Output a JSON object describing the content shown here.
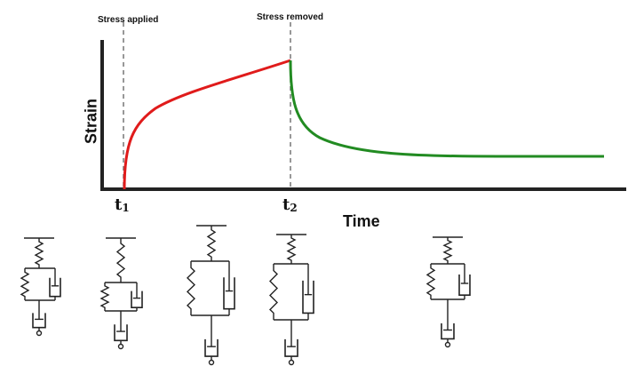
{
  "chart_data": {
    "type": "line",
    "title": "",
    "xlabel": "Time",
    "ylabel": "Strain",
    "annotations": [
      "Stress applied",
      "Stress removed"
    ],
    "tick_labels": {
      "t1_main": "t",
      "t1_sub": "1",
      "t2_main": "t",
      "t2_sub": "2"
    },
    "series": [
      {
        "color": "#e01b1b",
        "points": [
          [
            0,
            0
          ],
          [
            0.05,
            0.3
          ],
          [
            0.2,
            0.45
          ],
          [
            0.5,
            0.55
          ],
          [
            1.0,
            0.72
          ]
        ]
      },
      {
        "color": "#228b22",
        "points": [
          [
            1.0,
            0.72
          ],
          [
            1.02,
            0.5
          ],
          [
            1.1,
            0.42
          ],
          [
            1.4,
            0.32
          ],
          [
            2.0,
            0.27
          ],
          [
            3.0,
            0.27
          ]
        ]
      }
    ]
  },
  "models": [
    {
      "name": "model-1"
    },
    {
      "name": "model-2"
    },
    {
      "name": "model-3"
    },
    {
      "name": "model-4"
    },
    {
      "name": "model-5"
    }
  ]
}
